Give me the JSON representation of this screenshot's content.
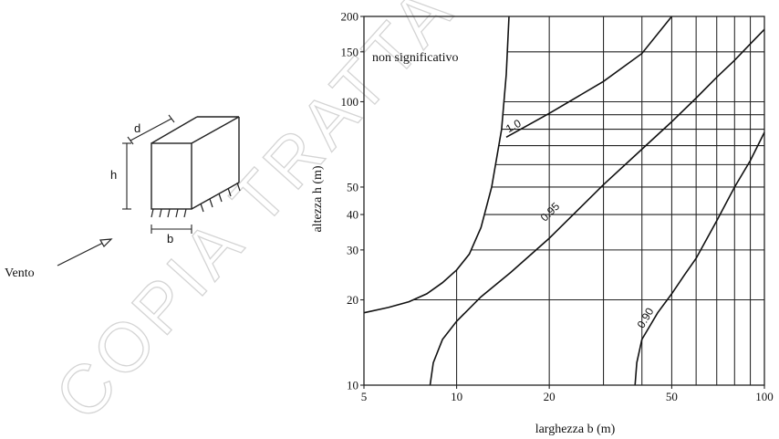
{
  "watermark": "COPIA TRATTA DA GURITEL",
  "diagram": {
    "labels": {
      "d": "d",
      "h": "h",
      "b": "b",
      "wind": "Vento"
    }
  },
  "chart_data": {
    "type": "line",
    "title": "",
    "xlabel": "larghezza b (m)",
    "ylabel": "altezza h (m)",
    "xscale": "log",
    "yscale": "log",
    "xlim": [
      5,
      100
    ],
    "ylim": [
      10,
      200
    ],
    "x_ticks": [
      5,
      10,
      20,
      50,
      100
    ],
    "y_ticks": [
      10,
      20,
      30,
      40,
      50,
      100,
      150,
      200
    ],
    "grid": true,
    "grid_x": [
      5,
      10,
      20,
      30,
      40,
      50,
      60,
      70,
      80,
      90,
      100
    ],
    "grid_y": [
      10,
      20,
      30,
      40,
      50,
      60,
      70,
      80,
      90,
      100,
      150,
      200
    ],
    "region_label": "non significativo",
    "boundary": {
      "x": [
        5,
        6,
        7,
        8,
        9,
        10,
        11,
        12,
        13,
        14,
        14.5,
        14.8
      ],
      "y": [
        18,
        18.8,
        19.7,
        21,
        23,
        25.5,
        29,
        36,
        50,
        80,
        125,
        200
      ]
    },
    "series": [
      {
        "name": "1.0",
        "x": [
          14.5,
          20,
          30,
          40,
          50
        ],
        "y": [
          75,
          91,
          118,
          148,
          200
        ]
      },
      {
        "name": "0.95",
        "x": [
          8.2,
          8.4,
          9,
          10,
          12,
          15,
          20,
          30,
          40,
          50,
          60,
          70,
          80,
          90,
          100
        ],
        "y": [
          10,
          12,
          14.5,
          16.8,
          20.5,
          25,
          33,
          51,
          68,
          85,
          103,
          122,
          140,
          160,
          180
        ]
      },
      {
        "name": "0.90",
        "x": [
          38,
          38.5,
          40,
          45,
          50,
          55,
          60,
          70,
          80,
          90,
          100
        ],
        "y": [
          10,
          12,
          14.5,
          18,
          21,
          24.5,
          28,
          38,
          50,
          62,
          78
        ]
      }
    ],
    "annotations": [
      "1.0",
      "0.95",
      "0.90"
    ]
  }
}
